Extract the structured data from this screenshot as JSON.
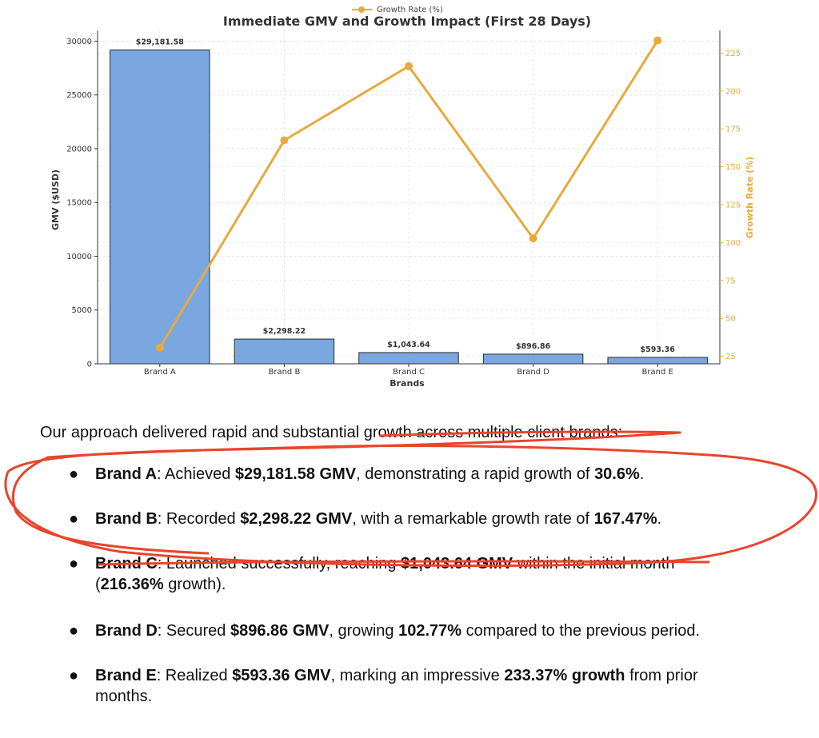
{
  "chart_data": {
    "type": "bar",
    "title": "Immediate GMV and Growth Impact (First 28 Days)",
    "xlabel": "Brands",
    "ylabel": "GMV ($USD)",
    "y2label": "Growth Rate (%)",
    "categories": [
      "Brand A",
      "Brand B",
      "Brand C",
      "Brand D",
      "Brand E"
    ],
    "values": [
      29181.58,
      2298.22,
      1043.64,
      896.86,
      593.36
    ],
    "value_labels": [
      "$29,181.58",
      "$2,298.22",
      "$1,043.64",
      "$896.86",
      "$593.36"
    ],
    "ylim": [
      0,
      31000
    ],
    "yticks": [
      0,
      5000,
      10000,
      15000,
      20000,
      25000,
      30000
    ],
    "y2lim": [
      20,
      240
    ],
    "y2ticks": [
      25,
      50,
      75,
      100,
      125,
      150,
      175,
      200,
      225
    ],
    "series": [
      {
        "name": "Growth Rate (%)",
        "type": "line",
        "axis": "right",
        "values": [
          30.6,
          167.47,
          216.36,
          102.77,
          233.37
        ]
      }
    ],
    "grid": true,
    "legend": "top-center",
    "colors": {
      "bar": "#7BA7E1",
      "bar_edge": "#2B2B2B",
      "line": "#E8A93E",
      "annotation": "#E8452B"
    }
  },
  "text": {
    "intro": "Our approach delivered rapid and substantial growth across multiple client brands:",
    "bullet_glyph": "●",
    "bullets": [
      {
        "brand": "Brand A",
        "p1": ": Achieved ",
        "v1": "$29,181.58 GMV",
        "p2": ", demonstrating a rapid growth of ",
        "v2": "30.6%",
        "p3": "."
      },
      {
        "brand": "Brand B",
        "p1": ": Recorded ",
        "v1": "$2,298.22 GMV",
        "p2": ", with a remarkable growth rate of ",
        "v2": "167.47%",
        "p3": "."
      },
      {
        "brand": "Brand C",
        "p1": ": Launched successfully, reaching ",
        "v1": "$1,043.64 GMV",
        "p2": " within the initial month (",
        "v2": "216.36%",
        "p3": " growth)."
      },
      {
        "brand": "Brand D",
        "p1": ": Secured ",
        "v1": "$896.86 GMV",
        "p2": ", growing ",
        "v2": "102.77%",
        "p3": " compared to the previous period."
      },
      {
        "brand": "Brand E",
        "p1": ": Realized ",
        "v1": "$593.36 GMV",
        "p2": ", marking an impressive ",
        "v2": "233.37% growth",
        "p3": " from prior months."
      }
    ]
  }
}
